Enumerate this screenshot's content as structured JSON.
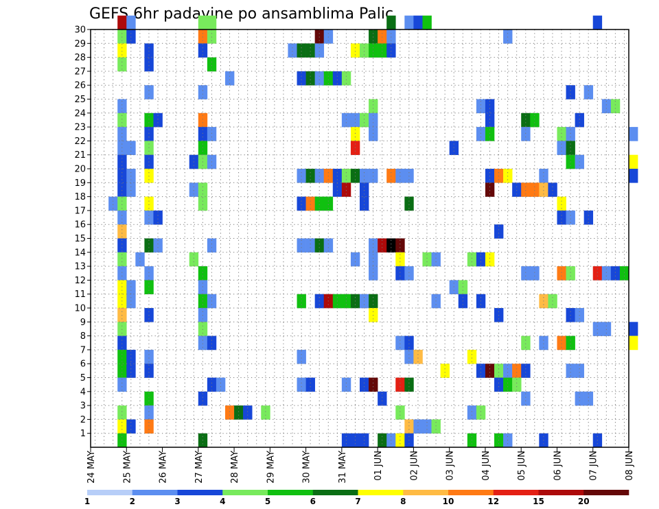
{
  "chart_data": {
    "type": "heatmap",
    "title": "GEFS 6hr padavine po ansamblima Palic",
    "y_categories": [
      "1",
      "2",
      "3",
      "4",
      "5",
      "6",
      "7",
      "8",
      "9",
      "10",
      "11",
      "12",
      "13",
      "14",
      "15",
      "16",
      "17",
      "18",
      "19",
      "20",
      "21",
      "22",
      "23",
      "24",
      "25",
      "26",
      "27",
      "28",
      "29",
      "30"
    ],
    "ylim": [
      0,
      30
    ],
    "x_tick_labels": [
      "24 MAY",
      "25 MAY",
      "26 MAY",
      "27 MAY",
      "28 MAY",
      "29 MAY",
      "30 MAY",
      "31 MAY",
      "01 JUN",
      "02 JUN",
      "03 JUN",
      "04 JUN",
      "05 JUN",
      "06 JUN",
      "07 JUN",
      "08 JUN"
    ],
    "time_steps_per_day": 4,
    "grid": true,
    "colorbar": {
      "labels": [
        "1",
        "2",
        "3",
        "4",
        "5",
        "6",
        "7",
        "8",
        "10",
        "12",
        "15",
        "20"
      ],
      "colors": [
        "#b7cef8",
        "#5c8ef0",
        "#1747d8",
        "#78ea5c",
        "#10c010",
        "#0a6e14",
        "#ffff00",
        "#ffbb44",
        "#ff7a14",
        "#e42014",
        "#ad0a0a",
        "#640808"
      ]
    },
    "cells": [
      [
        30,
        3,
        10
      ],
      [
        30,
        4,
        1
      ],
      [
        30,
        12,
        3
      ],
      [
        30,
        13,
        3
      ],
      [
        30,
        33,
        5
      ],
      [
        30,
        35,
        1
      ],
      [
        30,
        36,
        2
      ],
      [
        30,
        37,
        4
      ],
      [
        30,
        56,
        2
      ],
      [
        29,
        3,
        3
      ],
      [
        29,
        4,
        2
      ],
      [
        29,
        12,
        8
      ],
      [
        29,
        13,
        3
      ],
      [
        29,
        25,
        11
      ],
      [
        29,
        26,
        1
      ],
      [
        29,
        31,
        5
      ],
      [
        29,
        32,
        8
      ],
      [
        29,
        33,
        1
      ],
      [
        29,
        46,
        1
      ],
      [
        28,
        3,
        6
      ],
      [
        28,
        6,
        2
      ],
      [
        28,
        12,
        2
      ],
      [
        28,
        22,
        1
      ],
      [
        28,
        23,
        5
      ],
      [
        28,
        24,
        5
      ],
      [
        28,
        25,
        1
      ],
      [
        28,
        29,
        6
      ],
      [
        28,
        30,
        3
      ],
      [
        28,
        31,
        4
      ],
      [
        28,
        32,
        4
      ],
      [
        28,
        33,
        2
      ],
      [
        27,
        3,
        3
      ],
      [
        27,
        6,
        2
      ],
      [
        27,
        13,
        4
      ],
      [
        26,
        15,
        1
      ],
      [
        26,
        23,
        2
      ],
      [
        26,
        24,
        5
      ],
      [
        26,
        25,
        1
      ],
      [
        26,
        26,
        4
      ],
      [
        26,
        27,
        2
      ],
      [
        26,
        28,
        3
      ],
      [
        25,
        6,
        1
      ],
      [
        25,
        12,
        1
      ],
      [
        25,
        53,
        2
      ],
      [
        25,
        55,
        1
      ],
      [
        24,
        3,
        1
      ],
      [
        24,
        31,
        3
      ],
      [
        24,
        43,
        1
      ],
      [
        24,
        44,
        2
      ],
      [
        24,
        57,
        1
      ],
      [
        24,
        58,
        3
      ],
      [
        23,
        3,
        3
      ],
      [
        23,
        6,
        4
      ],
      [
        23,
        7,
        2
      ],
      [
        23,
        12,
        8
      ],
      [
        23,
        28,
        1
      ],
      [
        23,
        29,
        1
      ],
      [
        23,
        30,
        3
      ],
      [
        23,
        31,
        1
      ],
      [
        23,
        44,
        2
      ],
      [
        23,
        48,
        5
      ],
      [
        23,
        49,
        4
      ],
      [
        23,
        54,
        2
      ],
      [
        22,
        3,
        1
      ],
      [
        22,
        6,
        2
      ],
      [
        22,
        12,
        2
      ],
      [
        22,
        13,
        1
      ],
      [
        22,
        29,
        6
      ],
      [
        22,
        31,
        1
      ],
      [
        22,
        43,
        1
      ],
      [
        22,
        44,
        4
      ],
      [
        22,
        48,
        1
      ],
      [
        22,
        52,
        3
      ],
      [
        22,
        53,
        1
      ],
      [
        22,
        60,
        1
      ],
      [
        21,
        3,
        1
      ],
      [
        21,
        4,
        1
      ],
      [
        21,
        6,
        3
      ],
      [
        21,
        12,
        4
      ],
      [
        21,
        29,
        9
      ],
      [
        21,
        40,
        2
      ],
      [
        21,
        52,
        1
      ],
      [
        21,
        53,
        5
      ],
      [
        20,
        3,
        2
      ],
      [
        20,
        6,
        2
      ],
      [
        20,
        11,
        2
      ],
      [
        20,
        12,
        3
      ],
      [
        20,
        13,
        1
      ],
      [
        20,
        53,
        4
      ],
      [
        20,
        54,
        1
      ],
      [
        20,
        60,
        6
      ],
      [
        19,
        3,
        2
      ],
      [
        19,
        4,
        1
      ],
      [
        19,
        6,
        6
      ],
      [
        19,
        23,
        1
      ],
      [
        19,
        24,
        5
      ],
      [
        19,
        25,
        1
      ],
      [
        19,
        26,
        8
      ],
      [
        19,
        27,
        2
      ],
      [
        19,
        28,
        3
      ],
      [
        19,
        29,
        5
      ],
      [
        19,
        30,
        1
      ],
      [
        19,
        31,
        1
      ],
      [
        19,
        33,
        8
      ],
      [
        19,
        34,
        1
      ],
      [
        19,
        35,
        1
      ],
      [
        19,
        44,
        2
      ],
      [
        19,
        45,
        8
      ],
      [
        19,
        46,
        6
      ],
      [
        19,
        50,
        1
      ],
      [
        19,
        60,
        2
      ],
      [
        18,
        3,
        2
      ],
      [
        18,
        4,
        1
      ],
      [
        18,
        11,
        1
      ],
      [
        18,
        12,
        3
      ],
      [
        18,
        27,
        2
      ],
      [
        18,
        28,
        10
      ],
      [
        18,
        30,
        2
      ],
      [
        18,
        44,
        11
      ],
      [
        18,
        47,
        2
      ],
      [
        18,
        48,
        8
      ],
      [
        18,
        49,
        8
      ],
      [
        18,
        50,
        7
      ],
      [
        18,
        51,
        2
      ],
      [
        17,
        2,
        1
      ],
      [
        17,
        3,
        3
      ],
      [
        17,
        6,
        6
      ],
      [
        17,
        12,
        3
      ],
      [
        17,
        23,
        2
      ],
      [
        17,
        24,
        8
      ],
      [
        17,
        25,
        4
      ],
      [
        17,
        26,
        4
      ],
      [
        17,
        30,
        2
      ],
      [
        17,
        35,
        5
      ],
      [
        17,
        52,
        6
      ],
      [
        16,
        3,
        1
      ],
      [
        16,
        6,
        1
      ],
      [
        16,
        7,
        2
      ],
      [
        16,
        52,
        2
      ],
      [
        16,
        53,
        1
      ],
      [
        16,
        55,
        2
      ],
      [
        15,
        3,
        7
      ],
      [
        15,
        45,
        2
      ],
      [
        14,
        3,
        2
      ],
      [
        14,
        6,
        5
      ],
      [
        14,
        7,
        1
      ],
      [
        14,
        13,
        1
      ],
      [
        14,
        23,
        1
      ],
      [
        14,
        24,
        1
      ],
      [
        14,
        25,
        5
      ],
      [
        14,
        26,
        1
      ],
      [
        14,
        31,
        1
      ],
      [
        14,
        32,
        10
      ],
      [
        14,
        33,
        12
      ],
      [
        14,
        34,
        11
      ],
      [
        13,
        3,
        3
      ],
      [
        13,
        5,
        1
      ],
      [
        13,
        11,
        3
      ],
      [
        13,
        29,
        1
      ],
      [
        13,
        31,
        1
      ],
      [
        13,
        34,
        6
      ],
      [
        13,
        37,
        3
      ],
      [
        13,
        38,
        1
      ],
      [
        13,
        42,
        3
      ],
      [
        13,
        43,
        2
      ],
      [
        13,
        44,
        6
      ],
      [
        12,
        3,
        1
      ],
      [
        12,
        6,
        1
      ],
      [
        12,
        12,
        4
      ],
      [
        12,
        31,
        1
      ],
      [
        12,
        34,
        2
      ],
      [
        12,
        35,
        1
      ],
      [
        12,
        48,
        1
      ],
      [
        12,
        49,
        1
      ],
      [
        12,
        52,
        8
      ],
      [
        12,
        53,
        3
      ],
      [
        12,
        56,
        9
      ],
      [
        12,
        57,
        1
      ],
      [
        12,
        58,
        2
      ],
      [
        12,
        59,
        4
      ],
      [
        11,
        3,
        6
      ],
      [
        11,
        4,
        1
      ],
      [
        11,
        6,
        4
      ],
      [
        11,
        12,
        1
      ],
      [
        11,
        40,
        1
      ],
      [
        11,
        41,
        3
      ],
      [
        10,
        3,
        6
      ],
      [
        10,
        4,
        1
      ],
      [
        10,
        12,
        4
      ],
      [
        10,
        13,
        1
      ],
      [
        10,
        23,
        4
      ],
      [
        10,
        25,
        2
      ],
      [
        10,
        26,
        10
      ],
      [
        10,
        27,
        4
      ],
      [
        10,
        28,
        4
      ],
      [
        10,
        29,
        5
      ],
      [
        10,
        30,
        1
      ],
      [
        10,
        31,
        5
      ],
      [
        10,
        38,
        1
      ],
      [
        10,
        41,
        2
      ],
      [
        10,
        43,
        2
      ],
      [
        10,
        50,
        7
      ],
      [
        10,
        51,
        3
      ],
      [
        9,
        3,
        7
      ],
      [
        9,
        6,
        2
      ],
      [
        9,
        12,
        1
      ],
      [
        9,
        31,
        6
      ],
      [
        9,
        45,
        2
      ],
      [
        9,
        53,
        2
      ],
      [
        9,
        54,
        1
      ],
      [
        8,
        3,
        3
      ],
      [
        8,
        12,
        3
      ],
      [
        8,
        56,
        1
      ],
      [
        8,
        57,
        1
      ],
      [
        8,
        60,
        2
      ],
      [
        7,
        3,
        2
      ],
      [
        7,
        12,
        1
      ],
      [
        7,
        13,
        2
      ],
      [
        7,
        34,
        1
      ],
      [
        7,
        35,
        2
      ],
      [
        7,
        48,
        3
      ],
      [
        7,
        50,
        1
      ],
      [
        7,
        52,
        8
      ],
      [
        7,
        53,
        4
      ],
      [
        7,
        60,
        6
      ],
      [
        6,
        3,
        4
      ],
      [
        6,
        4,
        2
      ],
      [
        6,
        6,
        1
      ],
      [
        6,
        23,
        1
      ],
      [
        6,
        35,
        1
      ],
      [
        6,
        36,
        7
      ],
      [
        6,
        42,
        6
      ],
      [
        5,
        3,
        4
      ],
      [
        5,
        4,
        2
      ],
      [
        5,
        6,
        2
      ],
      [
        5,
        39,
        6
      ],
      [
        5,
        43,
        2
      ],
      [
        5,
        44,
        11
      ],
      [
        5,
        45,
        3
      ],
      [
        5,
        46,
        1
      ],
      [
        5,
        47,
        8
      ],
      [
        5,
        48,
        2
      ],
      [
        5,
        53,
        1
      ],
      [
        5,
        54,
        1
      ],
      [
        4,
        3,
        1
      ],
      [
        4,
        13,
        2
      ],
      [
        4,
        14,
        1
      ],
      [
        4,
        23,
        1
      ],
      [
        4,
        24,
        2
      ],
      [
        4,
        28,
        1
      ],
      [
        4,
        30,
        2
      ],
      [
        4,
        31,
        11
      ],
      [
        4,
        34,
        9
      ],
      [
        4,
        35,
        5
      ],
      [
        4,
        45,
        2
      ],
      [
        4,
        46,
        4
      ],
      [
        4,
        47,
        3
      ],
      [
        3,
        6,
        4
      ],
      [
        3,
        12,
        2
      ],
      [
        3,
        32,
        2
      ],
      [
        3,
        48,
        1
      ],
      [
        3,
        54,
        1
      ],
      [
        3,
        55,
        1
      ],
      [
        2,
        3,
        3
      ],
      [
        2,
        6,
        1
      ],
      [
        2,
        15,
        8
      ],
      [
        2,
        16,
        5
      ],
      [
        2,
        17,
        2
      ],
      [
        2,
        19,
        3
      ],
      [
        2,
        34,
        3
      ],
      [
        2,
        42,
        1
      ],
      [
        2,
        43,
        3
      ],
      [
        1,
        3,
        6
      ],
      [
        1,
        4,
        2
      ],
      [
        1,
        6,
        8
      ],
      [
        1,
        35,
        7
      ],
      [
        1,
        36,
        1
      ],
      [
        1,
        37,
        1
      ],
      [
        1,
        38,
        3
      ],
      [
        0,
        3,
        4
      ],
      [
        0,
        12,
        5
      ],
      [
        0,
        28,
        2
      ],
      [
        0,
        29,
        2
      ],
      [
        0,
        30,
        2
      ],
      [
        0,
        32,
        5
      ],
      [
        0,
        33,
        1
      ],
      [
        0,
        34,
        6
      ],
      [
        0,
        35,
        2
      ],
      [
        0,
        42,
        4
      ],
      [
        0,
        45,
        4
      ],
      [
        0,
        46,
        1
      ],
      [
        0,
        50,
        2
      ],
      [
        0,
        56,
        2
      ]
    ]
  }
}
